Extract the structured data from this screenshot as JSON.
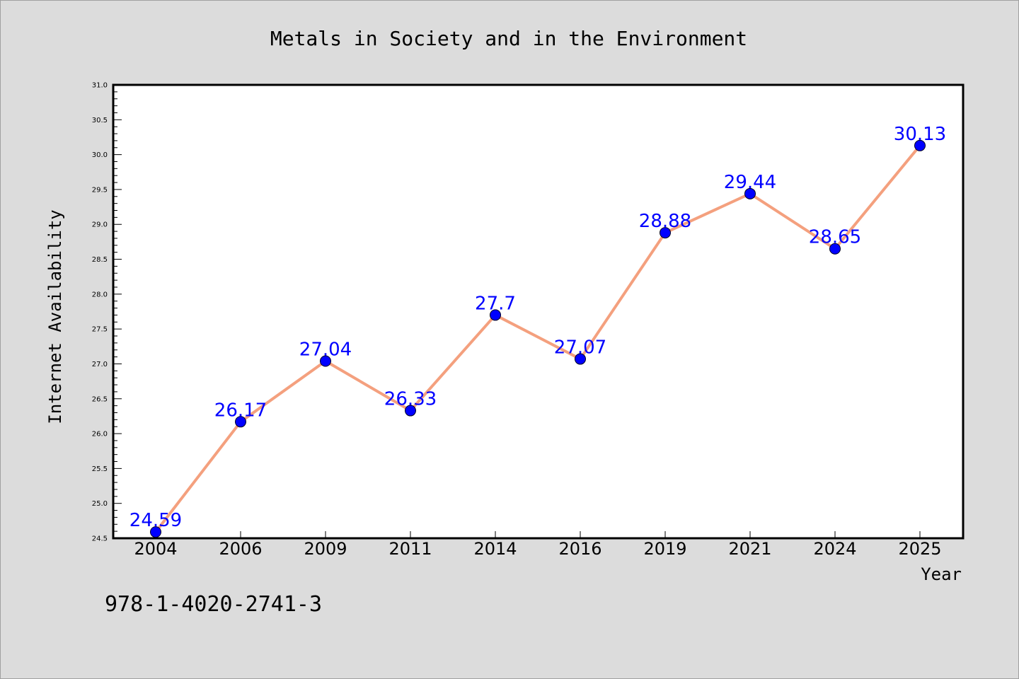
{
  "chart_data": {
    "type": "line",
    "title": "Metals in Society and in the Environment",
    "xlabel": "Year",
    "ylabel": "Internet Availability",
    "categories": [
      "2004",
      "2006",
      "2009",
      "2011",
      "2014",
      "2016",
      "2019",
      "2021",
      "2024",
      "2025"
    ],
    "values": [
      24.59,
      26.17,
      27.04,
      26.33,
      27.7,
      27.07,
      28.88,
      29.44,
      28.65,
      30.13
    ],
    "data_labels": [
      "24.59",
      "26.17",
      "27.04",
      "26.33",
      "27.7",
      "27.07",
      "28.88",
      "29.44",
      "28.65",
      "30.13"
    ],
    "ylim": [
      24.5,
      31.0
    ],
    "yticks": [
      "24.5",
      "25.0",
      "25.5",
      "26.0",
      "26.5",
      "27.0",
      "27.5",
      "28.0",
      "28.5",
      "29.0",
      "29.5",
      "30.0",
      "30.5",
      "31.0"
    ],
    "grid": false,
    "legend": "none",
    "line_color": "#f4a07e",
    "marker_color": "#0000ff",
    "label_color": "#0000ff"
  },
  "footnote": "978-1-4020-2741-3"
}
